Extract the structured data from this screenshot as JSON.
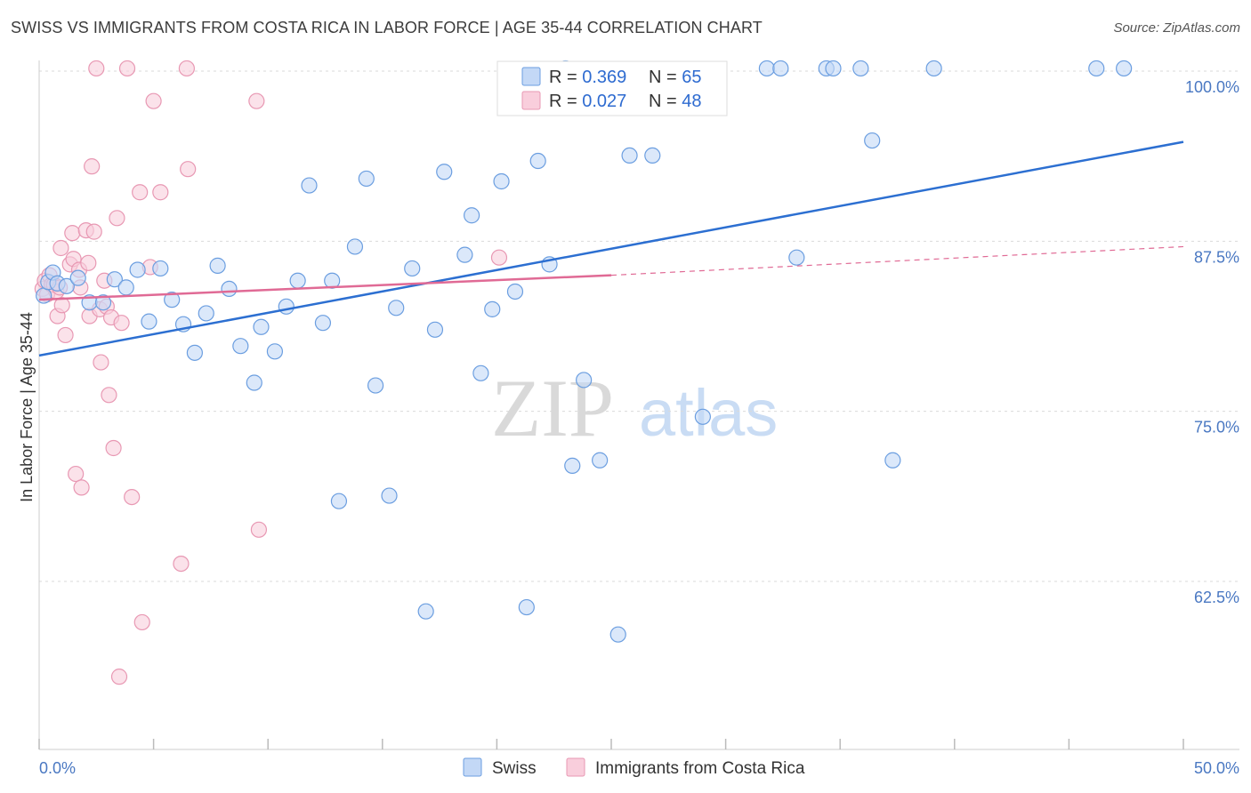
{
  "title": "SWISS VS IMMIGRANTS FROM COSTA RICA IN LABOR FORCE | AGE 35-44 CORRELATION CHART",
  "source": "Source: ZipAtlas.com",
  "watermark": {
    "zip": "ZIP",
    "atlas": "atlas"
  },
  "colors": {
    "swiss": "#6b9ee0",
    "swiss_fill": "#c3d8f6",
    "swiss_line": "#2c6fd1",
    "cr": "#e898b3",
    "cr_fill": "#f9cedc",
    "cr_line": "#e06a95",
    "axis_label": "#4a78c2",
    "grid": "#d9d9d9"
  },
  "legend_top": {
    "rows": [
      {
        "r_label": "R = ",
        "r_value": "0.369",
        "n_label": "N = ",
        "n_value": "65"
      },
      {
        "r_label": "R = ",
        "r_value": "0.027",
        "n_label": "N = ",
        "n_value": "48"
      }
    ]
  },
  "legend_bottom": [
    "Swiss",
    "Immigrants from Costa Rica"
  ],
  "chart_data": {
    "type": "scatter",
    "xlabel": "",
    "ylabel": "In Labor Force | Age 35-44",
    "xlim": [
      0,
      50
    ],
    "ylim": [
      50.5,
      100.5
    ],
    "x_tick_labels": [
      "0.0%",
      "50.0%"
    ],
    "y_ticks": [
      62.5,
      75.0,
      87.5,
      100.0
    ],
    "y_tick_labels": [
      "62.5%",
      "75.0%",
      "87.5%",
      "100.0%"
    ],
    "series": [
      {
        "name": "Swiss",
        "R": 0.369,
        "N": 65,
        "trend": {
          "x": [
            0,
            50
          ],
          "y": [
            79.1,
            94.8
          ],
          "style": "solid"
        },
        "points": [
          [
            0.2,
            83.5
          ],
          [
            0.4,
            84.5
          ],
          [
            0.6,
            85.2
          ],
          [
            0.8,
            84.4
          ],
          [
            1.2,
            84.2
          ],
          [
            1.7,
            84.8
          ],
          [
            2.2,
            83.0
          ],
          [
            2.8,
            83.0
          ],
          [
            3.3,
            84.7
          ],
          [
            3.8,
            84.1
          ],
          [
            4.3,
            85.4
          ],
          [
            4.8,
            81.6
          ],
          [
            5.3,
            85.5
          ],
          [
            5.8,
            83.2
          ],
          [
            6.3,
            81.4
          ],
          [
            6.8,
            79.3
          ],
          [
            7.3,
            82.2
          ],
          [
            7.8,
            85.7
          ],
          [
            8.3,
            84.0
          ],
          [
            8.8,
            79.8
          ],
          [
            9.4,
            77.1
          ],
          [
            9.7,
            81.2
          ],
          [
            10.3,
            79.4
          ],
          [
            10.8,
            82.7
          ],
          [
            11.3,
            84.6
          ],
          [
            11.8,
            91.6
          ],
          [
            12.4,
            81.5
          ],
          [
            12.8,
            84.6
          ],
          [
            13.1,
            68.4
          ],
          [
            13.8,
            87.1
          ],
          [
            14.3,
            92.1
          ],
          [
            14.7,
            76.9
          ],
          [
            15.3,
            68.8
          ],
          [
            15.6,
            82.6
          ],
          [
            16.3,
            85.5
          ],
          [
            16.9,
            60.3
          ],
          [
            17.3,
            81.0
          ],
          [
            17.7,
            92.6
          ],
          [
            18.6,
            86.5
          ],
          [
            18.9,
            89.4
          ],
          [
            19.3,
            77.8
          ],
          [
            19.8,
            82.5
          ],
          [
            20.2,
            91.9
          ],
          [
            20.8,
            83.8
          ],
          [
            21.3,
            60.6
          ],
          [
            21.8,
            93.4
          ],
          [
            22.3,
            85.8
          ],
          [
            23.0,
            100.2
          ],
          [
            23.3,
            71.0
          ],
          [
            23.8,
            77.3
          ],
          [
            24.5,
            71.4
          ],
          [
            25.3,
            58.6
          ],
          [
            25.8,
            93.8
          ],
          [
            26.8,
            93.8
          ],
          [
            29.0,
            74.6
          ],
          [
            31.8,
            100.2
          ],
          [
            32.4,
            100.2
          ],
          [
            33.1,
            86.3
          ],
          [
            34.4,
            100.2
          ],
          [
            34.7,
            100.2
          ],
          [
            35.9,
            100.2
          ],
          [
            36.4,
            94.9
          ],
          [
            37.3,
            71.4
          ],
          [
            39.1,
            100.2
          ],
          [
            46.2,
            100.2
          ],
          [
            47.4,
            100.2
          ]
        ]
      },
      {
        "name": "Immigrants from Costa Rica",
        "R": 0.027,
        "N": 48,
        "trend": {
          "x": [
            0,
            25,
            50
          ],
          "y": [
            83.2,
            85.0,
            87.1
          ],
          "style": "solid-then-dashed"
        },
        "points": [
          [
            0.15,
            84.0
          ],
          [
            0.25,
            84.6
          ],
          [
            0.35,
            83.6
          ],
          [
            0.45,
            85.0
          ],
          [
            0.55,
            84.3
          ],
          [
            0.65,
            84.3
          ],
          [
            0.75,
            83.8
          ],
          [
            0.9,
            84.1
          ],
          [
            0.8,
            82.0
          ],
          [
            0.95,
            87.0
          ],
          [
            1.0,
            82.8
          ],
          [
            1.15,
            80.6
          ],
          [
            1.35,
            85.8
          ],
          [
            1.5,
            86.2
          ],
          [
            1.45,
            88.1
          ],
          [
            1.6,
            70.4
          ],
          [
            1.75,
            85.4
          ],
          [
            1.8,
            84.1
          ],
          [
            1.85,
            69.4
          ],
          [
            2.05,
            88.3
          ],
          [
            2.15,
            85.9
          ],
          [
            2.2,
            82.0
          ],
          [
            2.3,
            93.0
          ],
          [
            2.4,
            88.2
          ],
          [
            2.5,
            100.2
          ],
          [
            2.65,
            82.5
          ],
          [
            2.7,
            78.6
          ],
          [
            2.85,
            84.6
          ],
          [
            2.95,
            82.7
          ],
          [
            3.05,
            76.2
          ],
          [
            3.15,
            81.9
          ],
          [
            3.25,
            72.3
          ],
          [
            3.4,
            89.2
          ],
          [
            3.5,
            55.5
          ],
          [
            3.6,
            81.5
          ],
          [
            3.85,
            100.2
          ],
          [
            4.05,
            68.7
          ],
          [
            4.4,
            91.1
          ],
          [
            4.5,
            59.5
          ],
          [
            4.85,
            85.6
          ],
          [
            5.0,
            97.8
          ],
          [
            5.3,
            91.1
          ],
          [
            6.2,
            63.8
          ],
          [
            6.45,
            100.2
          ],
          [
            6.5,
            92.8
          ],
          [
            9.5,
            97.8
          ],
          [
            9.6,
            66.3
          ],
          [
            20.1,
            86.3
          ]
        ]
      }
    ]
  }
}
